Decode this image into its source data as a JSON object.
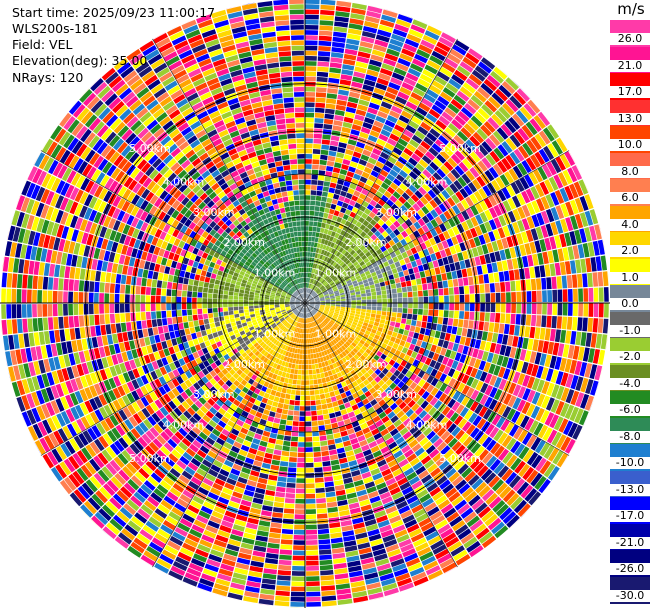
{
  "info": {
    "start_time": "Start time: 2025/09/23 11:00:17",
    "instrument": "WLS200s-181",
    "field": "Field: VEL",
    "elevation": "Elevation(deg): 35.00",
    "nrays": "NRays: 120"
  },
  "colorbar": {
    "unit": "m/s",
    "levels": [
      {
        "label": "26.0",
        "color": "#ff3aa8"
      },
      {
        "label": "21.0",
        "color": "#ff1493"
      },
      {
        "label": "17.0",
        "color": "#ff0000"
      },
      {
        "label": "13.0",
        "color": "#ff3030"
      },
      {
        "label": "10.0",
        "color": "#ff4500"
      },
      {
        "label": "8.0",
        "color": "#ff6a4a"
      },
      {
        "label": "6.0",
        "color": "#ff7f50"
      },
      {
        "label": "4.0",
        "color": "#ffa500"
      },
      {
        "label": "2.0",
        "color": "#ffd700"
      },
      {
        "label": "1.0",
        "color": "#ffff00"
      },
      {
        "label": "0.0",
        "color": "#778899"
      },
      {
        "label": "-1.0",
        "color": "#696969"
      },
      {
        "label": "-2.0",
        "color": "#9acd32"
      },
      {
        "label": "-4.0",
        "color": "#6b8e23"
      },
      {
        "label": "-6.0",
        "color": "#228b22"
      },
      {
        "label": "-8.0",
        "color": "#2e8b57"
      },
      {
        "label": "-10.0",
        "color": "#1e7fd0"
      },
      {
        "label": "-13.0",
        "color": "#3a5fcd"
      },
      {
        "label": "-17.0",
        "color": "#0000ff"
      },
      {
        "label": "-21.0",
        "color": "#0000aa"
      },
      {
        "label": "-26.0",
        "color": "#000080"
      },
      {
        "label": "-30.0",
        "color": "#191970"
      }
    ]
  },
  "range_ring_labels": [
    "1.00km",
    "2.00km",
    "3.00km",
    "4.00km",
    "5.00km"
  ],
  "plot": {
    "nrays": 120,
    "range_rings_km": [
      1,
      2,
      3,
      4,
      5
    ],
    "noise_palette": [
      "#ff1493",
      "#0000ff",
      "#ffff00",
      "#ff0000",
      "#228b22",
      "#1e7fd0",
      "#ff7f50",
      "#191970",
      "#ff3aa8",
      "#000080",
      "#9acd32",
      "#ffa500",
      "#ffd700",
      "#ff4500"
    ]
  }
}
